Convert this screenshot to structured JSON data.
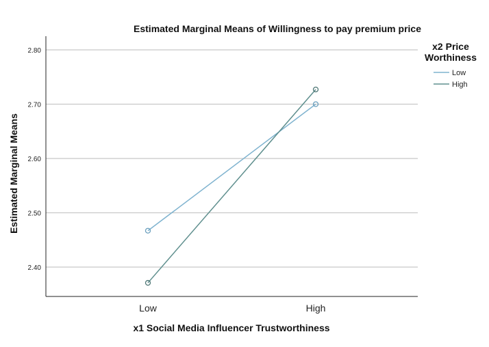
{
  "chart_data": {
    "type": "line",
    "title": "Estimated Marginal Means of Willingness to pay premium price",
    "xlabel": "x1 Social Media Influencer Trustworthiness",
    "ylabel": "Estimated Marginal Means",
    "categories": [
      "Low",
      "High"
    ],
    "ylim": [
      2.35,
      2.82
    ],
    "yticks": [
      "2.40",
      "2.50",
      "2.60",
      "2.70",
      "2.80"
    ],
    "ytick_values": [
      2.4,
      2.5,
      2.6,
      2.7,
      2.8
    ],
    "grid": true,
    "legend": {
      "title_line1": "x2 Price",
      "title_line2": "Worthiness",
      "placement": "right-top"
    },
    "series": [
      {
        "name": "Low",
        "values": [
          2.467,
          2.7
        ],
        "color": "#7fb3cf"
      },
      {
        "name": "High",
        "values": [
          2.371,
          2.727
        ],
        "color": "#5f8f8e"
      }
    ]
  }
}
